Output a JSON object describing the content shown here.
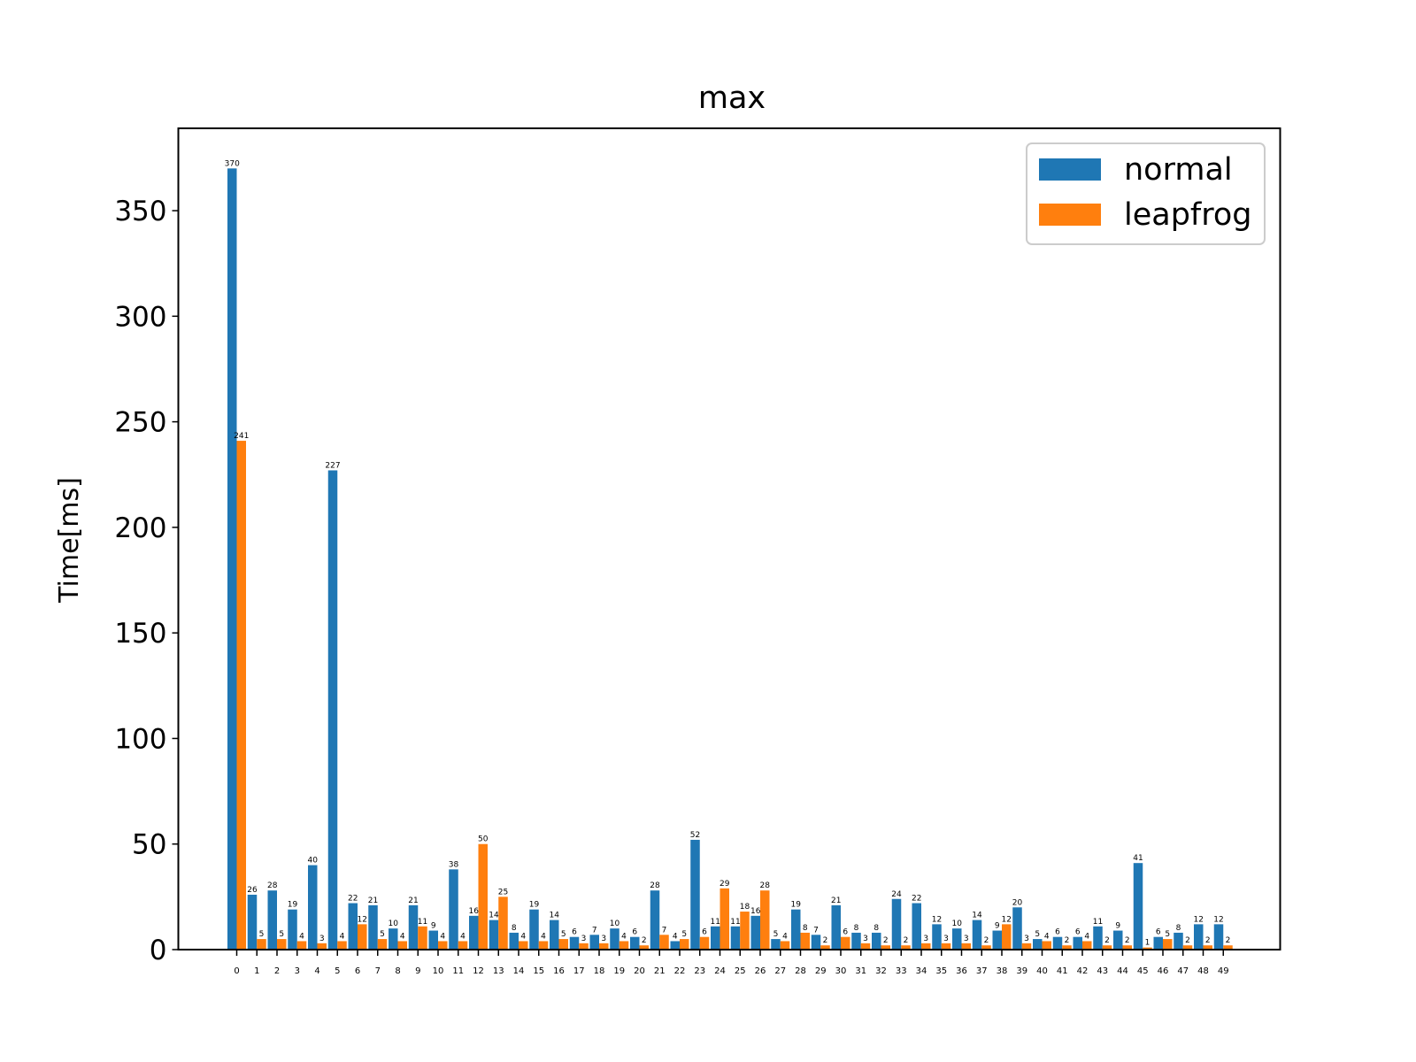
{
  "chart_data": {
    "type": "bar",
    "title": "max",
    "xlabel": "",
    "ylabel": "Time[ms]",
    "ylim": [
      0,
      389
    ],
    "yticks": [
      0,
      50,
      100,
      150,
      200,
      250,
      300,
      350
    ],
    "categories": [
      "0",
      "1",
      "2",
      "3",
      "4",
      "5",
      "6",
      "7",
      "8",
      "9",
      "10",
      "11",
      "12",
      "13",
      "14",
      "15",
      "16",
      "17",
      "18",
      "19",
      "20",
      "21",
      "22",
      "23",
      "24",
      "25",
      "26",
      "27",
      "28",
      "29",
      "30",
      "31",
      "32",
      "33",
      "34",
      "35",
      "36",
      "37",
      "38",
      "39",
      "40",
      "41",
      "42",
      "43",
      "44",
      "45",
      "46",
      "47",
      "48",
      "49"
    ],
    "series": [
      {
        "name": "normal",
        "color": "#1f77b4",
        "values": [
          370,
          26,
          28,
          19,
          40,
          227,
          22,
          21,
          10,
          21,
          9,
          38,
          16,
          14,
          8,
          19,
          14,
          6,
          7,
          10,
          6,
          28,
          4,
          52,
          11,
          11,
          16,
          5,
          19,
          7,
          21,
          8,
          8,
          24,
          22,
          12,
          10,
          14,
          9,
          20,
          5,
          6,
          6,
          11,
          9,
          41,
          6,
          8,
          12,
          12
        ]
      },
      {
        "name": "leapfrog",
        "color": "#ff7f0e",
        "values": [
          241,
          5,
          5,
          4,
          3,
          4,
          12,
          5,
          4,
          11,
          4,
          4,
          50,
          25,
          4,
          4,
          5,
          3,
          3,
          4,
          2,
          7,
          5,
          6,
          29,
          18,
          28,
          4,
          8,
          2,
          6,
          3,
          2,
          2,
          3,
          3,
          3,
          2,
          12,
          3,
          4,
          2,
          4,
          2,
          2,
          1,
          5,
          2,
          2,
          2
        ]
      }
    ],
    "legend_position": "top-right",
    "grid": false
  }
}
